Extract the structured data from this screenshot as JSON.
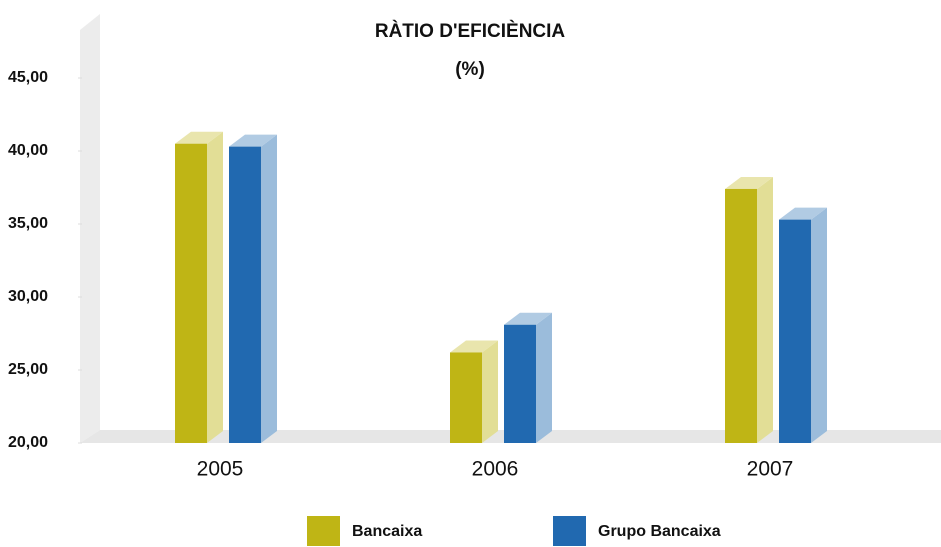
{
  "chart_data": {
    "type": "bar3d",
    "title": "RÀTIO D'EFICIÈNCIA",
    "subtitle": "(%)",
    "categories": [
      "2005",
      "2006",
      "2007"
    ],
    "series": [
      {
        "name": "Bancaixa",
        "color": "#bfb515",
        "values": [
          40.5,
          26.2,
          37.4
        ]
      },
      {
        "name": "Grupo Bancaixa",
        "color": "#2169b0",
        "values": [
          40.3,
          28.1,
          35.3
        ]
      }
    ],
    "ylim": [
      20,
      49
    ],
    "yticks": [
      {
        "value": 20,
        "label": "20,00"
      },
      {
        "value": 25,
        "label": "25,00"
      },
      {
        "value": 30,
        "label": "30,00"
      },
      {
        "value": 35,
        "label": "35,00"
      },
      {
        "value": 40,
        "label": "40,00"
      },
      {
        "value": 45,
        "label": "45,00"
      }
    ],
    "grid": false,
    "legend": "bottom"
  }
}
